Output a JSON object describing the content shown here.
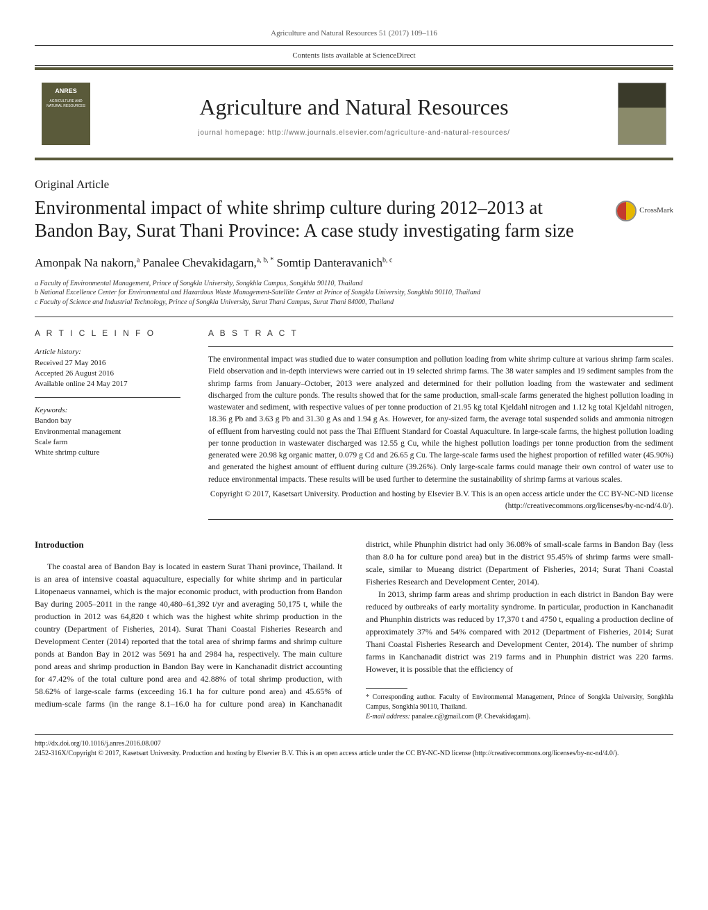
{
  "page_header": "Agriculture and Natural Resources 51 (2017) 109–116",
  "sciencedirect_line": "Contents lists available at ScienceDirect",
  "anres_badge": {
    "label": "ANRES",
    "sub": "AGRICULTURE AND NATURAL RESOURCES"
  },
  "journal_title": "Agriculture and Natural Resources",
  "journal_homepage": "journal homepage: http://www.journals.elsevier.com/agriculture-and-natural-resources/",
  "article_type": "Original Article",
  "article_title": "Environmental impact of white shrimp culture during 2012–2013 at Bandon Bay, Surat Thani Province: A case study investigating farm size",
  "crossmark_label": "CrossMark",
  "authors_html": "Amonpak Na nakorn,<sup>a</sup> Panalee Chevakidagarn,<sup>a, b, *</sup> Somtip Danteravanich<sup>b, c</sup>",
  "affiliations": [
    "a Faculty of Environmental Management, Prince of Songkla University, Songkhla Campus, Songkhla 90110, Thailand",
    "b National Excellence Center for Environmental and Hazardous Waste Management-Satellite Center at Prince of Songkla University, Songkhla 90110, Thailand",
    "c Faculty of Science and Industrial Technology, Prince of Songkla University, Surat Thani Campus, Surat Thani 84000, Thailand"
  ],
  "article_info_head": "A R T I C L E   I N F O",
  "abstract_head": "A B S T R A C T",
  "history_label": "Article history:",
  "history": [
    "Received 27 May 2016",
    "Accepted 26 August 2016",
    "Available online 24 May 2017"
  ],
  "keywords_label": "Keywords:",
  "keywords": [
    "Bandon bay",
    "Environmental management",
    "Scale farm",
    "White shrimp culture"
  ],
  "abstract_text": "The environmental impact was studied due to water consumption and pollution loading from white shrimp culture at various shrimp farm scales. Field observation and in-depth interviews were carried out in 19 selected shrimp farms. The 38 water samples and 19 sediment samples from the shrimp farms from January–October, 2013 were analyzed and determined for their pollution loading from the wastewater and sediment discharged from the culture ponds. The results showed that for the same production, small-scale farms generated the highest pollution loading in wastewater and sediment, with respective values of per tonne production of 21.95 kg total Kjeldahl nitrogen and 1.12 kg total Kjeldahl nitrogen, 18.36 g Pb and 3.63 g Pb and 31.30 g As and 1.94 g As. However, for any-sized farm, the average total suspended solids and ammonia nitrogen of effluent from harvesting could not pass the Thai Effluent Standard for Coastal Aquaculture. In large-scale farms, the highest pollution loading per tonne production in wastewater discharged was 12.55 g Cu, while the highest pollution loadings per tonne production from the sediment generated were 20.98 kg organic matter, 0.079 g Cd and 26.65 g Cu. The large-scale farms used the highest proportion of refilled water (45.90%) and generated the highest amount of effluent during culture (39.26%). Only large-scale farms could manage their own control of water use to reduce environmental impacts. These results will be used further to determine the sustainability of shrimp farms at various scales.",
  "abstract_copyright": "Copyright © 2017, Kasetsart University. Production and hosting by Elsevier B.V. This is an open access article under the CC BY-NC-ND license (http://creativecommons.org/licenses/by-nc-nd/4.0/).",
  "intro_head": "Introduction",
  "intro_paragraphs": [
    "The coastal area of Bandon Bay is located in eastern Surat Thani province, Thailand. It is an area of intensive coastal aquaculture, especially for white shrimp and in particular Litopenaeus vannamei, which is the major economic product, with production from Bandon Bay during 2005–2011 in the range 40,480–61,392 t/yr and averaging 50,175 t, while the production in 2012 was 64,820 t which was the highest white shrimp production in the country (Department of Fisheries, 2014). Surat Thani Coastal Fisheries Research and Development Center (2014) reported that the total area of shrimp farms and shrimp culture ponds at Bandon Bay in 2012 was 5691 ha and 2984 ha, respectively. The main culture pond areas and shrimp production in Bandon Bay were in Kanchanadit district accounting for 47.42% of the total culture pond area and 42.88% of total shrimp production, with 58.62% of large-scale farms (exceeding 16.1 ha for culture pond area) and 45.65% of medium-scale farms (in the range 8.1–16.0 ha for culture pond area) in Kanchanadit district, while Phunphin district had only 36.08% of small-scale farms in Bandon Bay (less than 8.0 ha for culture pond area) but in the district 95.45% of shrimp farms were small-scale, similar to Mueang district (Department of Fisheries, 2014; Surat Thani Coastal Fisheries Research and Development Center, 2014).",
    "In 2013, shrimp farm areas and shrimp production in each district in Bandon Bay were reduced by outbreaks of early mortality syndrome. In particular, production in Kanchanadit and Phunphin districts was reduced by 17,370 t and 4750 t, equaling a production decline of approximately 37% and 54% compared with 2012 (Department of Fisheries, 2014; Surat Thani Coastal Fisheries Research and Development Center, 2014). The number of shrimp farms in Kanchanadit district was 219 farms and in Phunphin district was 220 farms. However, it is possible that the efficiency of"
  ],
  "corr_footnote": "* Corresponding author. Faculty of Environmental Management, Prince of Songkla University, Songkhla Campus, Songkhla 90110, Thailand.",
  "email_label": "E-mail address:",
  "email_value": "panalee.c@gmail.com (P. Chevakidagarn).",
  "doi": "http://dx.doi.org/10.1016/j.anres.2016.08.007",
  "footer_copyright": "2452-316X/Copyright © 2017, Kasetsart University. Production and hosting by Elsevier B.V. This is an open access article under the CC BY-NC-ND license (http://creativecommons.org/licenses/by-nc-nd/4.0/).",
  "colors": {
    "accent": "#5a5a3a",
    "text": "#1a1a1a",
    "muted": "#555555"
  }
}
